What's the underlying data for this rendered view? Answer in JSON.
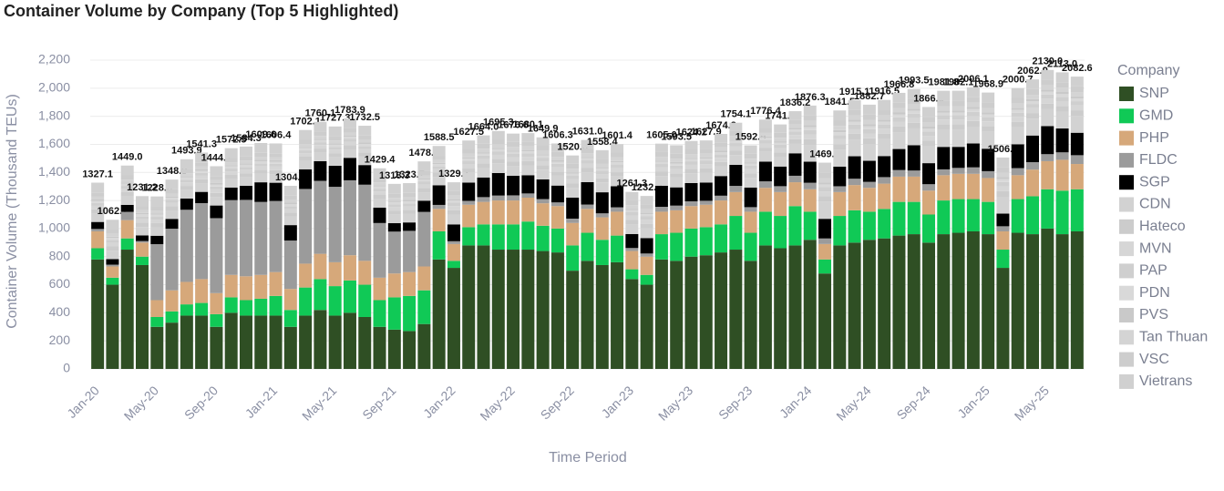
{
  "chart_data": {
    "type": "stacked_bar",
    "title": "Container Volume by Company (Top 5 Highlighted)",
    "x_label": "Time Period",
    "y_label": "Container Volume (Thousand TEUs)",
    "legend_title": "Company",
    "categories": [
      "Jan-20",
      null,
      null,
      null,
      "May-20",
      null,
      null,
      null,
      "Sep-20",
      null,
      null,
      null,
      "Jan-21",
      null,
      null,
      null,
      "May-21",
      null,
      null,
      null,
      "Sep-21",
      null,
      null,
      null,
      "Jan-22",
      null,
      null,
      null,
      "May-22",
      null,
      null,
      null,
      "Sep-22",
      null,
      null,
      null,
      "Jan-23",
      null,
      null,
      null,
      "May-23",
      null,
      null,
      null,
      "Sep-23",
      null,
      null,
      null,
      "Jan-24",
      null,
      null,
      null,
      "May-24",
      null,
      null,
      null,
      "Sep-24",
      null,
      null,
      null,
      "Jan-25",
      null,
      null,
      null,
      "May-25",
      null,
      null
    ],
    "ylim": [
      0,
      2200
    ],
    "yticks": [
      0,
      200,
      400,
      600,
      800,
      {
        "value": 1000,
        "label": "1,000"
      },
      {
        "value": 1200,
        "label": "1,200"
      },
      {
        "value": 1400,
        "label": "1,400"
      },
      {
        "value": 1600,
        "label": "1,600"
      },
      {
        "value": 1800,
        "label": "1,800"
      },
      {
        "value": 2000,
        "label": "2,000"
      },
      {
        "value": 2200,
        "label": "2,200"
      }
    ],
    "grid": true,
    "total_labels": [
      "1327.1",
      "1062.7",
      "1449.0",
      "1231.2",
      "1228.8",
      "1348.9",
      "1493.9",
      "1541.3",
      "1444.2",
      "1572.5",
      "1584.3",
      "1609.6",
      "1606.4",
      "1304.6",
      "1702.1",
      "1760.1",
      "1727.3",
      "1783.9",
      "1732.5",
      "1429.4",
      "1318.3",
      "1323.7",
      "1478.6",
      "1588.5",
      "1329.7",
      "1627.5",
      "1664.0",
      "1695.3",
      "1676.6",
      "1680.1",
      "1649.9",
      "1606.3",
      "1520.8",
      "1631.0",
      "1558.4",
      "1601.4",
      "1261.3",
      "1232.2",
      "1605.0",
      "1593.5",
      "1624.1",
      "1627.9",
      "1674.2",
      "1754.1",
      "1592.5",
      "1776.4",
      "1741.9",
      "1836.2",
      "1876.3",
      "1469.5",
      "1841.5",
      "1915.1",
      "1882.7",
      "1916.5",
      "1966.8",
      "1993.5",
      "1866.0",
      "1981.8",
      "1982.1",
      "2006.1",
      "1968.9",
      "1506.4",
      "2000.7",
      "2062.9",
      "2130.0",
      "2113.0",
      "2082.6"
    ],
    "series": [
      {
        "name": "SNP",
        "color": "#2f4f24",
        "values": [
          780,
          600,
          850,
          740,
          300,
          330,
          380,
          380,
          300,
          400,
          380,
          380,
          380,
          300,
          380,
          420,
          380,
          400,
          370,
          300,
          280,
          270,
          320,
          780,
          720,
          880,
          880,
          850,
          850,
          850,
          840,
          830,
          700,
          770,
          740,
          760,
          640,
          600,
          780,
          770,
          800,
          810,
          830,
          850,
          770,
          880,
          860,
          880,
          920,
          680,
          880,
          900,
          920,
          930,
          950,
          960,
          900,
          960,
          970,
          980,
          960,
          720,
          970,
          960,
          1000,
          960,
          980
        ]
      },
      {
        "name": "GMD",
        "color": "#10c956",
        "values": [
          80,
          50,
          80,
          60,
          70,
          80,
          80,
          90,
          90,
          110,
          110,
          120,
          140,
          120,
          200,
          220,
          210,
          230,
          230,
          190,
          230,
          250,
          240,
          200,
          50,
          130,
          150,
          180,
          180,
          200,
          180,
          170,
          180,
          200,
          180,
          190,
          70,
          70,
          180,
          200,
          200,
          200,
          200,
          240,
          200,
          240,
          230,
          280,
          200,
          100,
          210,
          230,
          200,
          210,
          240,
          230,
          200,
          240,
          240,
          230,
          230,
          130,
          240,
          270,
          280,
          310,
          300
        ]
      },
      {
        "name": "PHP",
        "color": "#d6a87a",
        "values": [
          120,
          80,
          130,
          100,
          120,
          150,
          160,
          170,
          150,
          160,
          170,
          170,
          170,
          150,
          170,
          180,
          170,
          180,
          170,
          160,
          170,
          170,
          170,
          160,
          120,
          160,
          160,
          170,
          170,
          170,
          160,
          160,
          160,
          170,
          160,
          170,
          130,
          130,
          160,
          160,
          160,
          160,
          170,
          170,
          150,
          170,
          170,
          170,
          160,
          110,
          170,
          180,
          170,
          180,
          180,
          180,
          170,
          180,
          180,
          180,
          170,
          130,
          170,
          190,
          200,
          220,
          180
        ]
      },
      {
        "name": "FLDC",
        "color": "#9b9b9b",
        "values": [
          17.1,
          12.7,
          59,
          11.2,
          398.8,
          438.9,
          513.9,
          541.3,
          534.2,
          532.5,
          544.3,
          519.6,
          506.4,
          344.6,
          532.1,
          520.1,
          537.3,
          533.9,
          542.5,
          389.4,
          298.3,
          293.7,
          388.6,
          28.5,
          19.7,
          27.5,
          34,
          35.3,
          36.6,
          30.1,
          29.9,
          26.3,
          30.8,
          31,
          28.4,
          31.4,
          21.3,
          22.2,
          35,
          33.5,
          34.1,
          27.9,
          34.2,
          44.1,
          32.5,
          46.4,
          41.9,
          46.2,
          46.3,
          39.5,
          41.5,
          45.1,
          42.7,
          46.5,
          46.8,
          43.5,
          46,
          41.8,
          42.1,
          46.1,
          48.9,
          36.4,
          50.7,
          52.9,
          50,
          53,
          62.6
        ]
      },
      {
        "name": "SGP",
        "color": "#000000",
        "values": [
          50,
          40,
          50,
          40,
          60,
          70,
          80,
          80,
          90,
          90,
          100,
          140,
          130,
          110,
          140,
          140,
          150,
          160,
          140,
          110,
          60,
          60,
          80,
          140,
          120,
          130,
          140,
          160,
          140,
          130,
          140,
          120,
          150,
          160,
          150,
          150,
          100,
          110,
          150,
          130,
          130,
          130,
          140,
          150,
          140,
          140,
          140,
          160,
          150,
          140,
          140,
          160,
          150,
          150,
          150,
          180,
          150,
          160,
          150,
          170,
          160,
          90,
          170,
          190,
          200,
          170,
          160
        ]
      },
      {
        "name": "CDN",
        "color": "#d2d2d2",
        "values": [
          60,
          60,
          60,
          60,
          60,
          60,
          60,
          60,
          60,
          60,
          60,
          60,
          60,
          60,
          60,
          60,
          60,
          60,
          60,
          60,
          60,
          60,
          60,
          60,
          70,
          70,
          70,
          70,
          70,
          70,
          70,
          70,
          70,
          70,
          70,
          70,
          70,
          70,
          70,
          70,
          70,
          70,
          70,
          70,
          70,
          70,
          70,
          70,
          120,
          120,
          120,
          120,
          120,
          120,
          120,
          120,
          120,
          120,
          120,
          120,
          120,
          120,
          120,
          120,
          120,
          120,
          120
        ]
      },
      {
        "name": "Hateco",
        "color": "#cccccc",
        "values": [
          30,
          30,
          30,
          30,
          30,
          30,
          30,
          30,
          30,
          30,
          30,
          30,
          30,
          30,
          30,
          30,
          30,
          30,
          30,
          30,
          30,
          30,
          30,
          30,
          30,
          30,
          30,
          30,
          30,
          30,
          30,
          30,
          30,
          30,
          30,
          30,
          30,
          30,
          30,
          30,
          30,
          30,
          30,
          30,
          30,
          30,
          30,
          30,
          40,
          40,
          40,
          40,
          40,
          40,
          40,
          40,
          40,
          40,
          40,
          40,
          40,
          40,
          40,
          40,
          40,
          40,
          40
        ]
      },
      {
        "name": "MVN",
        "color": "#d6d6d6",
        "values": [
          25,
          25,
          25,
          25,
          25,
          25,
          25,
          25,
          25,
          25,
          25,
          25,
          25,
          25,
          25,
          25,
          25,
          25,
          25,
          25,
          25,
          25,
          25,
          25,
          30,
          30,
          30,
          30,
          30,
          30,
          30,
          30,
          30,
          30,
          30,
          30,
          30,
          30,
          30,
          30,
          30,
          30,
          30,
          30,
          30,
          30,
          30,
          30,
          35,
          35,
          35,
          35,
          35,
          35,
          35,
          35,
          35,
          35,
          35,
          35,
          35,
          35,
          35,
          35,
          35,
          35,
          35
        ]
      },
      {
        "name": "PAP",
        "color": "#cfcfcf",
        "values": [
          20,
          20,
          20,
          20,
          20,
          20,
          20,
          20,
          20,
          20,
          20,
          20,
          20,
          20,
          20,
          20,
          20,
          20,
          20,
          20,
          20,
          20,
          20,
          20,
          25,
          25,
          25,
          25,
          25,
          25,
          25,
          25,
          25,
          25,
          25,
          25,
          25,
          25,
          25,
          25,
          25,
          25,
          25,
          25,
          25,
          25,
          25,
          25,
          30,
          30,
          30,
          30,
          30,
          30,
          30,
          30,
          30,
          30,
          30,
          30,
          30,
          30,
          30,
          30,
          30,
          30,
          30
        ]
      },
      {
        "name": "PDN",
        "color": "#d9d9d9",
        "values": [
          15,
          15,
          15,
          15,
          15,
          15,
          15,
          15,
          15,
          15,
          15,
          15,
          15,
          15,
          15,
          15,
          15,
          15,
          15,
          15,
          15,
          15,
          15,
          15,
          15,
          15,
          15,
          15,
          15,
          15,
          15,
          15,
          15,
          15,
          15,
          15,
          15,
          15,
          15,
          15,
          15,
          15,
          15,
          15,
          15,
          15,
          15,
          15,
          20,
          20,
          20,
          20,
          20,
          20,
          20,
          20,
          20,
          20,
          20,
          20,
          20,
          20,
          20,
          20,
          20,
          20,
          20
        ]
      },
      {
        "name": "PVS",
        "color": "#c9c9c9",
        "values": [
          10,
          10,
          10,
          10,
          10,
          10,
          10,
          10,
          10,
          10,
          10,
          10,
          10,
          10,
          10,
          10,
          10,
          10,
          10,
          10,
          10,
          10,
          10,
          10,
          10,
          10,
          10,
          10,
          10,
          10,
          10,
          10,
          10,
          10,
          10,
          10,
          10,
          10,
          10,
          10,
          10,
          10,
          10,
          10,
          10,
          10,
          10,
          10,
          15,
          15,
          15,
          15,
          15,
          15,
          15,
          15,
          15,
          15,
          15,
          15,
          15,
          15,
          15,
          15,
          15,
          15,
          15
        ]
      },
      {
        "name": "Tan Thuan",
        "color": "#d4d4d4",
        "values": [
          20,
          20,
          20,
          20,
          20,
          20,
          20,
          20,
          20,
          20,
          20,
          20,
          20,
          20,
          20,
          20,
          20,
          20,
          20,
          20,
          20,
          20,
          20,
          20,
          25,
          25,
          25,
          25,
          25,
          25,
          25,
          25,
          25,
          25,
          25,
          25,
          25,
          25,
          25,
          25,
          25,
          25,
          25,
          25,
          25,
          25,
          25,
          25,
          30,
          30,
          30,
          30,
          30,
          30,
          30,
          30,
          30,
          30,
          30,
          30,
          30,
          30,
          30,
          30,
          30,
          30,
          30
        ]
      },
      {
        "name": "VSC",
        "color": "#cdcdcd",
        "values": [
          30,
          30,
          30,
          30,
          30,
          30,
          30,
          30,
          30,
          30,
          30,
          30,
          30,
          30,
          30,
          30,
          30,
          30,
          30,
          30,
          30,
          30,
          30,
          30,
          35,
          35,
          35,
          35,
          35,
          35,
          35,
          35,
          35,
          35,
          35,
          35,
          35,
          35,
          35,
          35,
          35,
          35,
          35,
          35,
          35,
          35,
          35,
          35,
          40,
          40,
          40,
          40,
          40,
          40,
          40,
          40,
          40,
          40,
          40,
          40,
          40,
          40,
          40,
          40,
          40,
          40,
          40
        ]
      },
      {
        "name": "Vietrans",
        "color": "#d0d0d0",
        "values": [
          70,
          70,
          70,
          70,
          70,
          70,
          70,
          70,
          70,
          70,
          70,
          70,
          70,
          70,
          70,
          70,
          70,
          70,
          70,
          70,
          70,
          70,
          70,
          70,
          60,
          60,
          60,
          60,
          60,
          60,
          60,
          60,
          60,
          60,
          60,
          60,
          60,
          60,
          60,
          60,
          60,
          60,
          60,
          60,
          60,
          60,
          60,
          60,
          70,
          70,
          70,
          70,
          70,
          70,
          70,
          70,
          70,
          70,
          70,
          70,
          70,
          70,
          70,
          70,
          70,
          70,
          70
        ]
      }
    ]
  }
}
